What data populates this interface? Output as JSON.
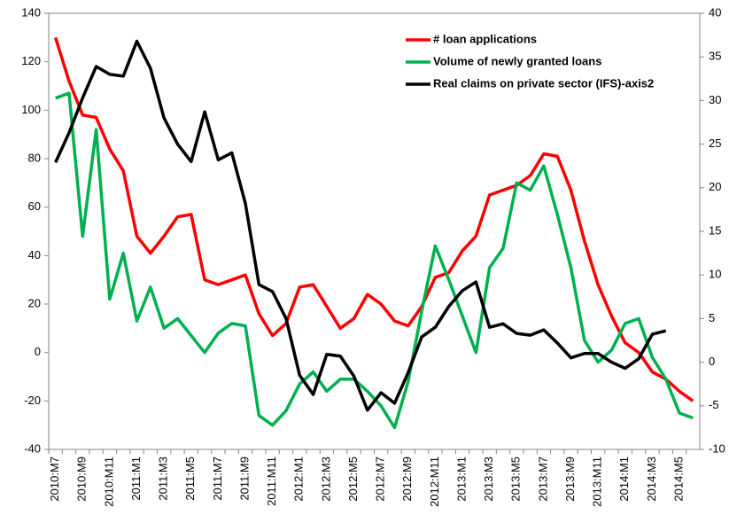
{
  "chart_data": {
    "type": "line",
    "categories": [
      "2010:M7",
      null,
      "2010:M9",
      null,
      "2010:M11",
      null,
      "2011:M1",
      null,
      "2011:M3",
      null,
      "2011:M5",
      null,
      "2011:M7",
      null,
      "2011:M9",
      null,
      "2011:M11",
      null,
      "2012:M1",
      null,
      "2012:M3",
      null,
      "2012:M5",
      null,
      "2012:M7",
      null,
      "2012:M9",
      null,
      "2012:M11",
      null,
      "2013:M1",
      null,
      "2013:M3",
      null,
      "2013:M5",
      null,
      "2013:M7",
      null,
      "2013:M9",
      null,
      "2013:M11",
      null,
      "2014:M1",
      null,
      "2014:M3",
      null,
      "2014:M5",
      null
    ],
    "series": [
      {
        "name": "# loan applications",
        "color": "#ff0000",
        "values": [
          130,
          112,
          98,
          97,
          84,
          75,
          48,
          41,
          48,
          56,
          57,
          30,
          28,
          30,
          32,
          16,
          7,
          12,
          27,
          28,
          19,
          10,
          14,
          24,
          20,
          13,
          11,
          19,
          31,
          33,
          42,
          48,
          65,
          67,
          69,
          73,
          82,
          81,
          67,
          46,
          28,
          15,
          4,
          0,
          -8,
          -11,
          -16,
          -20
        ]
      },
      {
        "name": "Volume of newly granted loans",
        "color": "#00b050",
        "values": [
          105,
          107,
          48,
          92,
          22,
          41,
          13,
          27,
          10,
          14,
          7,
          0,
          8,
          12,
          11,
          -26,
          -30,
          -24,
          -13,
          -8,
          -16,
          -11,
          -11,
          -16,
          -22,
          -31,
          -12,
          17,
          44,
          30,
          15,
          0,
          35,
          43,
          70,
          67,
          77,
          57,
          35,
          5,
          -4,
          1,
          12,
          14,
          -2,
          -11,
          -25,
          -27
        ]
      },
      {
        "name": "Real claims on private sector (IFS)-axis2",
        "color": "#000000",
        "axis": "y2",
        "values": [
          22.9,
          26.3,
          30.3,
          33.9,
          33,
          32.8,
          36.8,
          33.7,
          28,
          25,
          23,
          28.7,
          23.2,
          24,
          18.2,
          8.9,
          8.1,
          5,
          -1.5,
          -3.7,
          0.9,
          0.7,
          -1.6,
          -5.5,
          -3.5,
          -4.7,
          -1.2,
          2.9,
          4,
          6.4,
          8.2,
          9.2,
          4,
          4.4,
          3.3,
          3.1,
          3.7,
          2.2,
          0.5,
          1,
          1,
          0,
          -0.7,
          0.4,
          3.2,
          3.6,
          null,
          null
        ]
      }
    ],
    "ylim": [
      -40,
      140
    ],
    "yticks": [
      -40,
      -20,
      0,
      20,
      40,
      60,
      80,
      100,
      120,
      140
    ],
    "y2lim": [
      -10,
      40
    ],
    "y2ticks": [
      -10,
      -5,
      0,
      5,
      10,
      15,
      20,
      25,
      30,
      35,
      40
    ],
    "grid": false,
    "legend": "top-right"
  }
}
